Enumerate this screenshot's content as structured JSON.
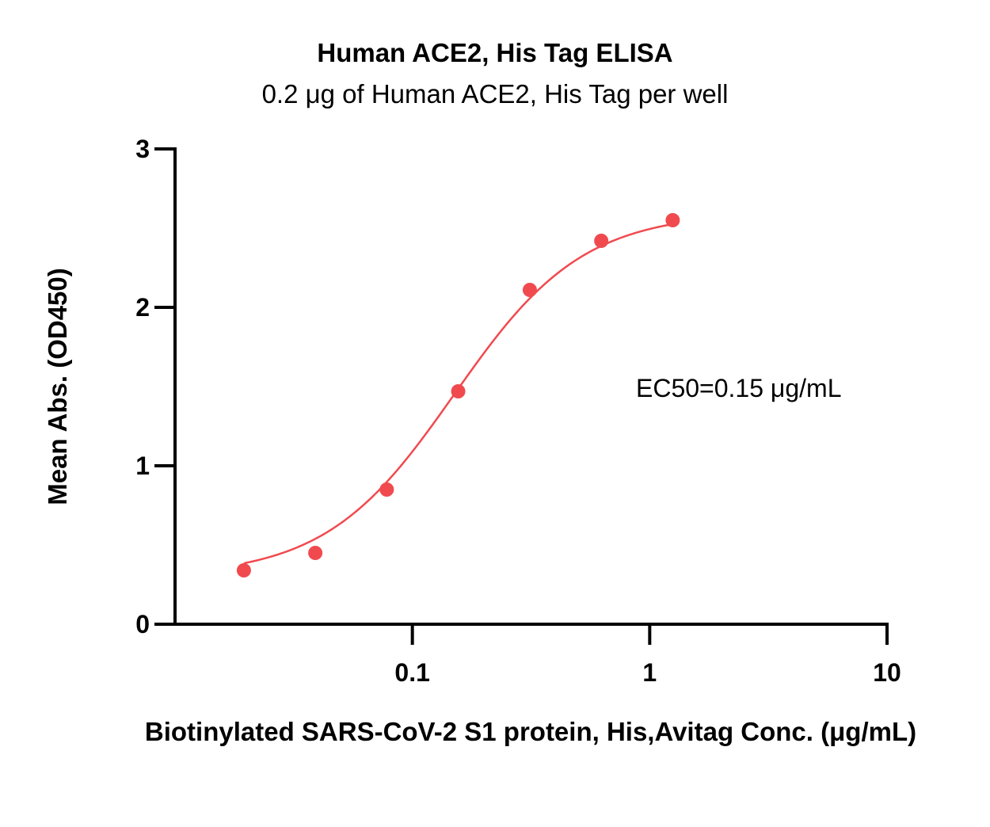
{
  "chart_data": {
    "type": "scatter",
    "title": "Human ACE2, His Tag ELISA",
    "subtitle": "0.2 μg of Human ACE2, His Tag per well",
    "xlabel": "Biotinylated SARS-CoV-2 S1 protein, His,Avitag Conc. (μg/mL)",
    "ylabel": "Mean Abs. (OD450)",
    "x_scale": "log",
    "xlim": [
      0.01,
      10
    ],
    "ylim": [
      0,
      3
    ],
    "x_ticks": [
      0.1,
      1,
      10
    ],
    "x_tick_labels": [
      "0.1",
      "1",
      "10"
    ],
    "y_ticks": [
      0,
      1,
      2,
      3
    ],
    "y_tick_labels": [
      "0",
      "1",
      "2",
      "3"
    ],
    "grid": false,
    "series": [
      {
        "color": "#f04a4f",
        "x": [
          0.0195,
          0.039,
          0.078,
          0.156,
          0.3125,
          0.625,
          1.25
        ],
        "y": [
          0.34,
          0.45,
          0.85,
          1.47,
          2.11,
          2.42,
          2.55
        ],
        "fit": "4PL",
        "fit_params": {
          "bottom": 0.3,
          "top": 2.6,
          "ec50": 0.15,
          "hill": 1.6
        }
      }
    ],
    "annotations": [
      {
        "text": "EC50=0.15 μg/mL"
      }
    ]
  }
}
